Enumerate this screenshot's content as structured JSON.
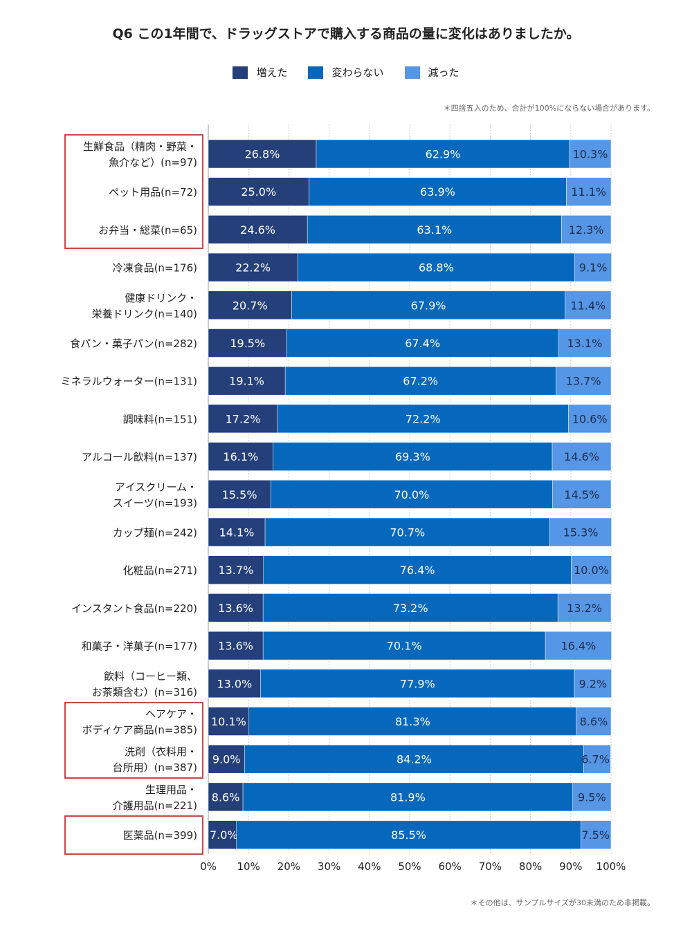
{
  "title": "Q6 この1年間で、ドラッグストアで購入する商品の量に変化はありましたか。",
  "note_top": "＊四捨五入のため、合計が100%にならない場合があります。",
  "note_bottom": "＊その他は、サンプルサイズが30未満のため非掲載。",
  "colors": {
    "increased": "#243f7a",
    "unchanged": "#0568bd",
    "decreased": "#5596e6",
    "highlight": "#c8464b",
    "grid": "#cfcfcf"
  },
  "chart_data": {
    "type": "bar",
    "orientation": "horizontal",
    "stacked": true,
    "legend_position": "top-center",
    "xlim": [
      0,
      100
    ],
    "x_ticks": [
      "0%",
      "10%",
      "20%",
      "30%",
      "40%",
      "50%",
      "60%",
      "70%",
      "80%",
      "90%",
      "100%"
    ],
    "series": [
      {
        "name": "増えた",
        "color": "#243f7a"
      },
      {
        "name": "変わらない",
        "color": "#0568bd"
      },
      {
        "name": "減った",
        "color": "#5596e6"
      }
    ],
    "rows": [
      {
        "label": [
          "生鮮食品（精肉・野菜・",
          "魚介など）(n=97)"
        ],
        "values": [
          26.8,
          62.9,
          10.3
        ],
        "highlight": 0
      },
      {
        "label": [
          "ペット用品(n=72)"
        ],
        "values": [
          25.0,
          63.9,
          11.1
        ],
        "highlight": 0
      },
      {
        "label": [
          "お弁当・総菜(n=65)"
        ],
        "values": [
          24.6,
          63.1,
          12.3
        ],
        "highlight": 0
      },
      {
        "label": [
          "冷凍食品(n=176)"
        ],
        "values": [
          22.2,
          68.8,
          9.1
        ]
      },
      {
        "label": [
          "健康ドリンク・",
          "栄養ドリンク(n=140)"
        ],
        "values": [
          20.7,
          67.9,
          11.4
        ]
      },
      {
        "label": [
          "食パン・菓子パン(n=282)"
        ],
        "values": [
          19.5,
          67.4,
          13.1
        ]
      },
      {
        "label": [
          "ミネラルウォーター(n=131)"
        ],
        "values": [
          19.1,
          67.2,
          13.7
        ]
      },
      {
        "label": [
          "調味料(n=151)"
        ],
        "values": [
          17.2,
          72.2,
          10.6
        ]
      },
      {
        "label": [
          "アルコール飲料(n=137)"
        ],
        "values": [
          16.1,
          69.3,
          14.6
        ]
      },
      {
        "label": [
          "アイスクリーム・",
          "スイーツ(n=193)"
        ],
        "values": [
          15.5,
          70.0,
          14.5
        ]
      },
      {
        "label": [
          "カップ麺(n=242)"
        ],
        "values": [
          14.1,
          70.7,
          15.3
        ]
      },
      {
        "label": [
          "化粧品(n=271)"
        ],
        "values": [
          13.7,
          76.4,
          10.0
        ]
      },
      {
        "label": [
          "インスタント食品(n=220)"
        ],
        "values": [
          13.6,
          73.2,
          13.2
        ]
      },
      {
        "label": [
          "和菓子・洋菓子(n=177)"
        ],
        "values": [
          13.6,
          70.1,
          16.4
        ]
      },
      {
        "label": [
          "飲料（コーヒー類、",
          "お茶類含む）(n=316)"
        ],
        "values": [
          13.0,
          77.9,
          9.2
        ]
      },
      {
        "label": [
          "ヘアケア・",
          "ボディケア商品(n=385)"
        ],
        "values": [
          10.1,
          81.3,
          8.6
        ],
        "highlight": 1
      },
      {
        "label": [
          "洗剤（衣料用・",
          "台所用）(n=387)"
        ],
        "values": [
          9.0,
          84.2,
          6.7
        ],
        "highlight": 1
      },
      {
        "label": [
          "生理用品・",
          "介護用品(n=221)"
        ],
        "values": [
          8.6,
          81.9,
          9.5
        ]
      },
      {
        "label": [
          "医薬品(n=399)"
        ],
        "values": [
          7.0,
          85.5,
          7.5
        ],
        "highlight": 2
      }
    ]
  }
}
